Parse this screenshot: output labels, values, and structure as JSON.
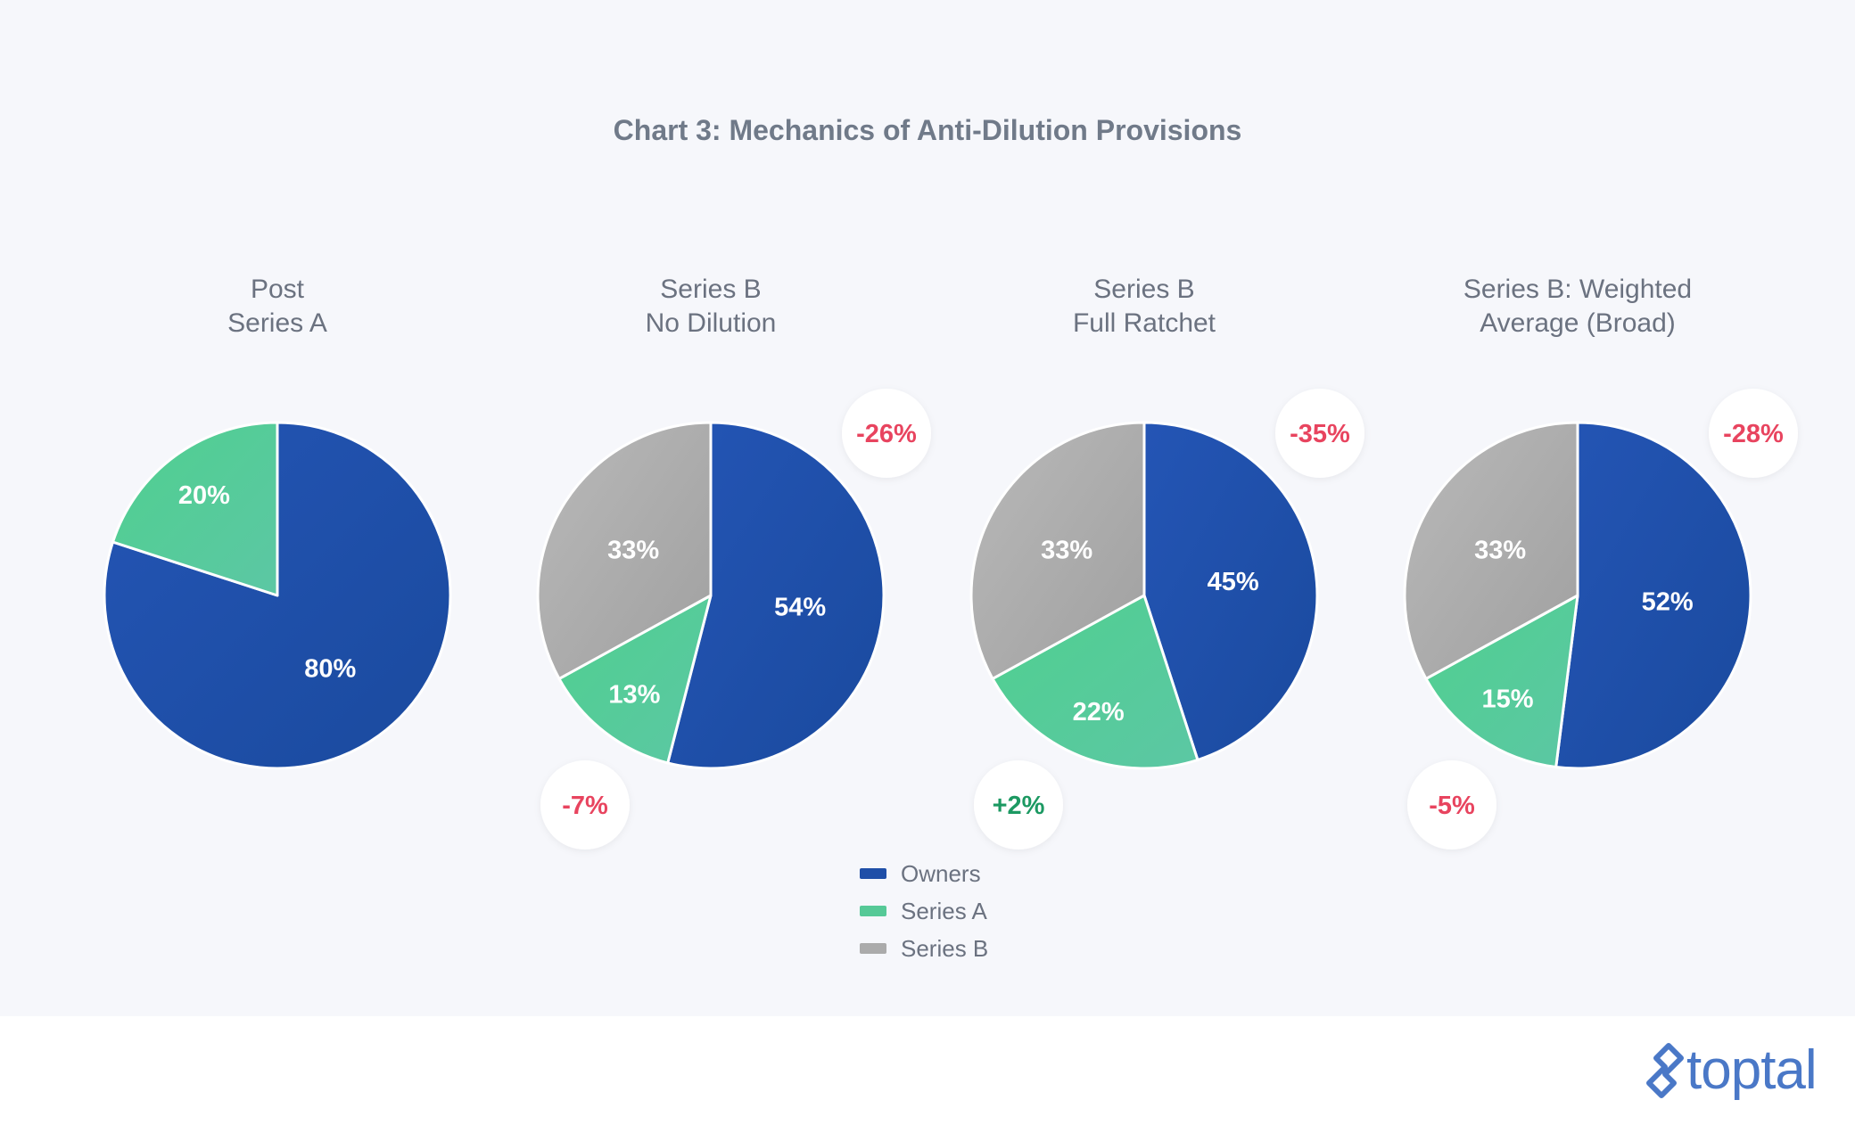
{
  "colors": {
    "owners": "#1f4fa8",
    "series_a": "#56c997",
    "series_b": "#ababab",
    "negative": "#e8445f",
    "positive": "#1c9962",
    "panel": "#f6f7fb"
  },
  "chart_data": {
    "type": "pie",
    "title": "Chart 3: Mechanics of Anti-Dilution Provisions",
    "legend": {
      "placement": "bottom-center",
      "entries": [
        {
          "key": "owners",
          "label": "Owners"
        },
        {
          "key": "series_a",
          "label": "Series A"
        },
        {
          "key": "series_b",
          "label": "Series B"
        }
      ]
    },
    "pies": [
      {
        "title_lines": [
          "Post",
          "Series A"
        ],
        "slices": [
          {
            "key": "owners",
            "value": 80,
            "label": "80%"
          },
          {
            "key": "series_a",
            "value": 20,
            "label": "20%"
          }
        ],
        "changes": []
      },
      {
        "title_lines": [
          "Series B",
          "No Dilution"
        ],
        "slices": [
          {
            "key": "owners",
            "value": 54,
            "label": "54%"
          },
          {
            "key": "series_a",
            "value": 13,
            "label": "13%"
          },
          {
            "key": "series_b",
            "value": 33,
            "label": "33%"
          }
        ],
        "changes": [
          {
            "key": "owners",
            "value": -26,
            "label": "-26%"
          },
          {
            "key": "series_a",
            "value": -7,
            "label": "-7%"
          }
        ]
      },
      {
        "title_lines": [
          "Series B",
          "Full Ratchet"
        ],
        "slices": [
          {
            "key": "owners",
            "value": 45,
            "label": "45%"
          },
          {
            "key": "series_a",
            "value": 22,
            "label": "22%"
          },
          {
            "key": "series_b",
            "value": 33,
            "label": "33%"
          }
        ],
        "changes": [
          {
            "key": "owners",
            "value": -35,
            "label": "-35%"
          },
          {
            "key": "series_a",
            "value": 2,
            "label": "+2%"
          }
        ]
      },
      {
        "title_lines": [
          "Series B: Weighted",
          "Average (Broad)"
        ],
        "slices": [
          {
            "key": "owners",
            "value": 52,
            "label": "52%"
          },
          {
            "key": "series_a",
            "value": 15,
            "label": "15%"
          },
          {
            "key": "series_b",
            "value": 33,
            "label": "33%"
          }
        ],
        "changes": [
          {
            "key": "owners",
            "value": -28,
            "label": "-28%"
          },
          {
            "key": "series_a",
            "value": -5,
            "label": "-5%"
          }
        ]
      }
    ]
  },
  "brand": {
    "name": "toptal",
    "icon": "toptal-logo-icon"
  }
}
